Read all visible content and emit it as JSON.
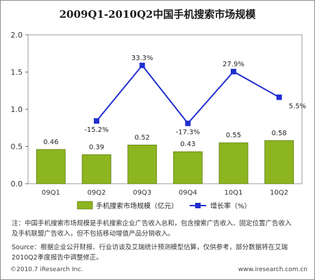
{
  "title": "2009Q1-2010Q2中国手机搜索市场规模",
  "chart_data": {
    "type": "bar",
    "categories": [
      "09Q1",
      "09Q2",
      "09Q3",
      "09Q4",
      "10Q1",
      "10Q2"
    ],
    "ylim": [
      0,
      2.0
    ],
    "yticks": [
      "0.0",
      "0.5",
      "1.0",
      "1.5",
      "2.0"
    ],
    "grid": false,
    "legend_position": "bottom",
    "series": [
      {
        "name": "手机搜索市场规模（亿元）",
        "type": "bar",
        "values": [
          0.46,
          0.39,
          0.52,
          0.43,
          0.55,
          0.58
        ],
        "labels": [
          "0.46",
          "0.39",
          "0.52",
          "0.43",
          "0.55",
          "0.58"
        ],
        "color": "#8db520"
      },
      {
        "name": "增长率（%）",
        "type": "line",
        "values": [
          null,
          -15.2,
          33.3,
          -17.3,
          27.9,
          5.5
        ],
        "labels": [
          "",
          "-15.2%",
          "33.3%",
          "-17.3%",
          "27.9%",
          "5.5%"
        ],
        "color": "#1f2fcf"
      }
    ]
  },
  "notes": {
    "note_line1": "注：中国手机搜索市场规模是手机搜索企业广告收入总和，包含搜索广告收入、固定位置广告收入",
    "note_line2": "及手机联盟广告收入，但不包括移动增值产品分销收入。",
    "source_line1": "Source：根据企业公开财报、行业访谈及艾瑞统计预测模型估算，仅供参考，部分数据将在艾瑞",
    "source_line2": "2010Q2季度报告中调整修正。"
  },
  "footer": {
    "copyright": "©2010.7 iResearch Inc.",
    "website": "www.iresearch.com.cn"
  }
}
